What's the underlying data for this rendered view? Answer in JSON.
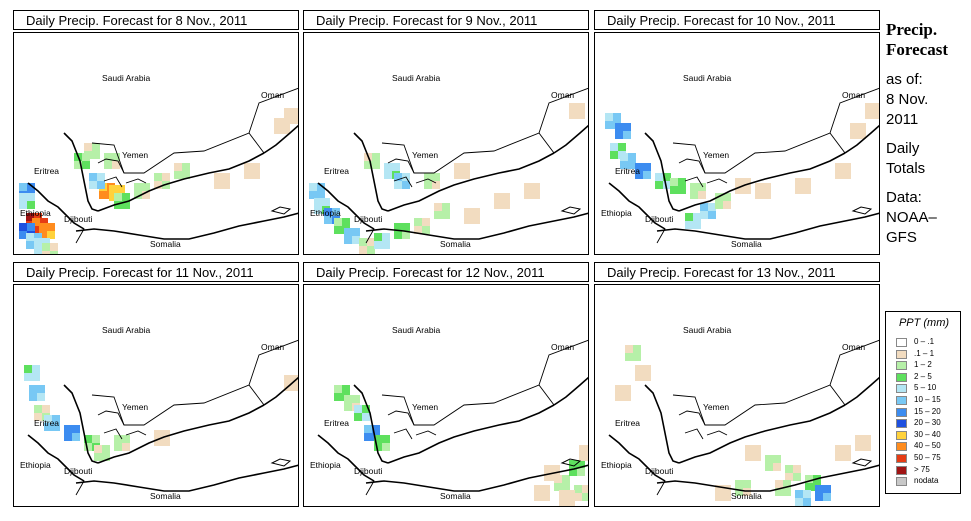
{
  "panels": [
    {
      "title": "Daily Precip. Forecast for  8 Nov., 2011"
    },
    {
      "title": "Daily Precip. Forecast for  9 Nov., 2011"
    },
    {
      "title": "Daily Precip. Forecast for  10 Nov., 2011"
    },
    {
      "title": "Daily Precip. Forecast for  11 Nov., 2011"
    },
    {
      "title": "Daily Precip. Forecast for  12 Nov., 2011"
    },
    {
      "title": "Daily Precip. Forecast for  13 Nov., 2011"
    }
  ],
  "map_labels": {
    "saudi_arabia": "Saudi Arabia",
    "oman": "Oman",
    "yemen": "Yemen",
    "eritrea": "Eritrea",
    "ethiopia": "Ethiopia",
    "djibouti": "Djibouti",
    "somalia": "Somalia"
  },
  "side": {
    "heading_line1": "Precip.",
    "heading_line2": "Forecast",
    "asof_line1": "as of:",
    "asof_line2": "8 Nov.",
    "asof_line3": "2011",
    "daily_line1": "Daily",
    "daily_line2": "Totals",
    "data_line1": "Data:",
    "data_line2": "NOAA–",
    "data_line3": "GFS"
  },
  "legend": {
    "title": "PPT (mm)",
    "items": [
      {
        "label": "0 – .1",
        "color": "#ffffff"
      },
      {
        "label": ".1 – 1",
        "color": "#f2dcc0"
      },
      {
        "label": "1 – 2",
        "color": "#b6f0a8"
      },
      {
        "label": "2 – 5",
        "color": "#5ee05e"
      },
      {
        "label": "5 – 10",
        "color": "#b4e6f4"
      },
      {
        "label": "10 – 15",
        "color": "#78c8f4"
      },
      {
        "label": "15 – 20",
        "color": "#3c8cf0"
      },
      {
        "label": "20 – 30",
        "color": "#1e50e0"
      },
      {
        "label": "30 – 40",
        "color": "#ffd23c"
      },
      {
        "label": "40 – 50",
        "color": "#ff8c1e"
      },
      {
        "label": "50 – 75",
        "color": "#e63c14"
      },
      {
        "label": "> 75",
        "color": "#a01414"
      },
      {
        "label": "nodata",
        "color": "#c8c8c8"
      }
    ]
  }
}
